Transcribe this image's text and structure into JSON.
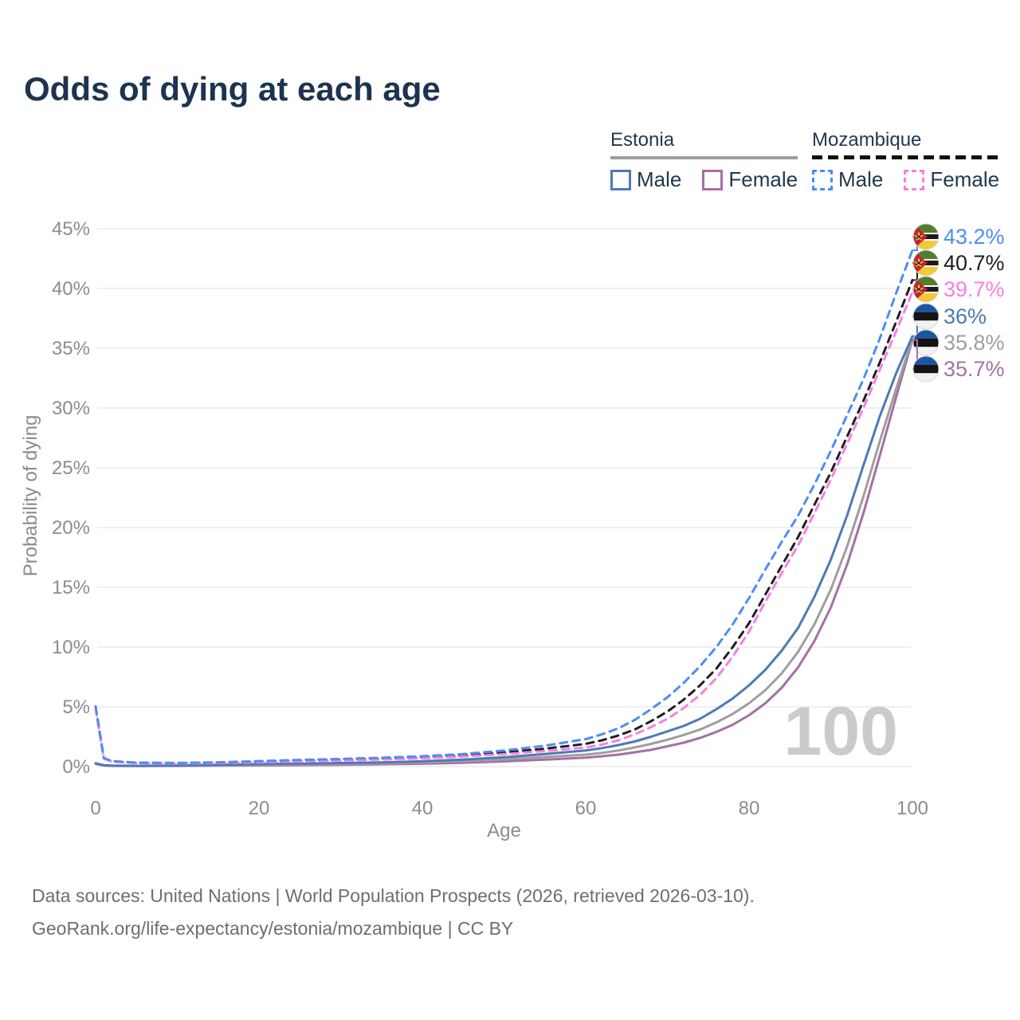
{
  "title": "Odds of dying at each age",
  "legend": {
    "estonia": {
      "label": "Estonia",
      "male": "Male",
      "female": "Female",
      "header_line_color": "#9e9e9e",
      "male_color": "#4e79b8",
      "female_color": "#a76fa5",
      "line_style": "solid"
    },
    "mozambique": {
      "label": "Mozambique",
      "male": "Male",
      "female": "Female",
      "header_line_color": "#1a1a1a",
      "male_color": "#4c8df6",
      "female_color": "#f97ee3",
      "line_style": "dashed"
    }
  },
  "chart_data": {
    "type": "line",
    "title": "Odds of dying at each age",
    "xlabel": "Age",
    "ylabel": "Probability of dying",
    "xlim": [
      0,
      100
    ],
    "ylim": [
      0,
      45
    ],
    "x_ticks": [
      0,
      20,
      40,
      60,
      80,
      100
    ],
    "y_ticks": [
      0,
      5,
      10,
      15,
      20,
      25,
      30,
      35,
      40,
      45
    ],
    "y_tick_suffix": "%",
    "grid": "horizontal",
    "age_marker": "100",
    "x": [
      0,
      1,
      2,
      5,
      10,
      15,
      20,
      25,
      30,
      35,
      40,
      45,
      50,
      55,
      60,
      62,
      64,
      66,
      68,
      70,
      72,
      74,
      76,
      78,
      80,
      82,
      84,
      86,
      88,
      90,
      92,
      94,
      96,
      98,
      100
    ],
    "series": [
      {
        "id": "moz_male",
        "name": "Mozambique Male",
        "country": "Mozambique",
        "sex": "Male",
        "flag": "mozambique",
        "color": "#4c8df6",
        "dash": true,
        "end_label": "43.2%",
        "values": [
          5.05,
          0.72,
          0.46,
          0.33,
          0.31,
          0.36,
          0.46,
          0.56,
          0.64,
          0.74,
          0.87,
          1.05,
          1.35,
          1.75,
          2.3,
          2.7,
          3.2,
          3.9,
          4.8,
          5.8,
          7.0,
          8.4,
          10.0,
          11.9,
          14.1,
          16.5,
          18.8,
          21.0,
          23.6,
          26.4,
          29.4,
          32.4,
          35.8,
          39.6,
          43.2
        ]
      },
      {
        "id": "moz_total",
        "name": "Mozambique",
        "country": "Mozambique",
        "sex": "Both",
        "flag": "mozambique",
        "color": "#1f1f1f",
        "dash": true,
        "end_label": "40.7%",
        "values": [
          4.95,
          0.69,
          0.44,
          0.31,
          0.29,
          0.33,
          0.41,
          0.5,
          0.57,
          0.66,
          0.77,
          0.93,
          1.18,
          1.5,
          1.9,
          2.2,
          2.6,
          3.1,
          3.8,
          4.6,
          5.6,
          6.8,
          8.2,
          10.0,
          12.0,
          14.4,
          16.8,
          19.2,
          21.9,
          24.6,
          27.6,
          30.6,
          33.8,
          37.2,
          40.7
        ]
      },
      {
        "id": "moz_female",
        "name": "Mozambique Female",
        "country": "Mozambique",
        "sex": "Female",
        "flag": "mozambique",
        "color": "#f97ee3",
        "dash": true,
        "end_label": "39.7%",
        "values": [
          4.85,
          0.66,
          0.42,
          0.29,
          0.27,
          0.3,
          0.37,
          0.45,
          0.51,
          0.59,
          0.69,
          0.84,
          1.05,
          1.3,
          1.6,
          1.85,
          2.2,
          2.7,
          3.3,
          4.0,
          4.9,
          6.0,
          7.4,
          9.2,
          11.3,
          13.8,
          16.2,
          18.5,
          21.2,
          24.0,
          27.0,
          30.0,
          33.2,
          36.4,
          39.7
        ]
      },
      {
        "id": "est_male",
        "name": "Estonia Male",
        "country": "Estonia",
        "sex": "Male",
        "flag": "estonia",
        "color": "#4e79b8",
        "dash": false,
        "end_label": "36%",
        "values": [
          0.28,
          0.12,
          0.08,
          0.07,
          0.09,
          0.14,
          0.22,
          0.25,
          0.3,
          0.35,
          0.45,
          0.58,
          0.78,
          1.05,
          1.35,
          1.55,
          1.8,
          2.1,
          2.5,
          2.95,
          3.4,
          4.0,
          4.8,
          5.7,
          6.8,
          8.1,
          9.7,
          11.6,
          14.2,
          17.3,
          21.0,
          25.2,
          29.3,
          32.9,
          36.0
        ]
      },
      {
        "id": "est_total",
        "name": "Estonia",
        "country": "Estonia",
        "sex": "Both",
        "flag": "estonia",
        "color": "#9e9e9e",
        "dash": false,
        "end_label": "35.8%",
        "values": [
          0.25,
          0.1,
          0.07,
          0.06,
          0.08,
          0.11,
          0.16,
          0.18,
          0.22,
          0.27,
          0.34,
          0.45,
          0.6,
          0.8,
          1.0,
          1.15,
          1.35,
          1.6,
          1.9,
          2.25,
          2.65,
          3.1,
          3.7,
          4.4,
          5.3,
          6.4,
          7.8,
          9.6,
          11.9,
          14.8,
          18.4,
          22.6,
          27.2,
          31.6,
          35.8
        ]
      },
      {
        "id": "est_female",
        "name": "Estonia Female",
        "country": "Estonia",
        "sex": "Female",
        "flag": "estonia",
        "color": "#a76fa5",
        "dash": false,
        "end_label": "35.7%",
        "values": [
          0.22,
          0.09,
          0.06,
          0.05,
          0.06,
          0.08,
          0.1,
          0.12,
          0.15,
          0.19,
          0.24,
          0.32,
          0.43,
          0.58,
          0.75,
          0.87,
          1.0,
          1.2,
          1.4,
          1.7,
          2.0,
          2.4,
          2.9,
          3.5,
          4.3,
          5.3,
          6.6,
          8.3,
          10.5,
          13.3,
          16.9,
          21.2,
          26.0,
          30.9,
          35.7
        ]
      }
    ],
    "flag_colors": {
      "estonia": {
        "blue": "#1d55a5",
        "black": "#141414",
        "white": "#f2f2f2"
      },
      "mozambique": {
        "green": "#527d2a",
        "black": "#1a1a1a",
        "white": "#ffffff",
        "yellow": "#f6c833",
        "red": "#c5203a"
      }
    }
  },
  "footer": {
    "line1": "Data sources: United Nations | World Population Prospects (2026, retrieved 2026-03-10).",
    "line2": "GeoRank.org/life-expectancy/estonia/mozambique | CC BY"
  }
}
